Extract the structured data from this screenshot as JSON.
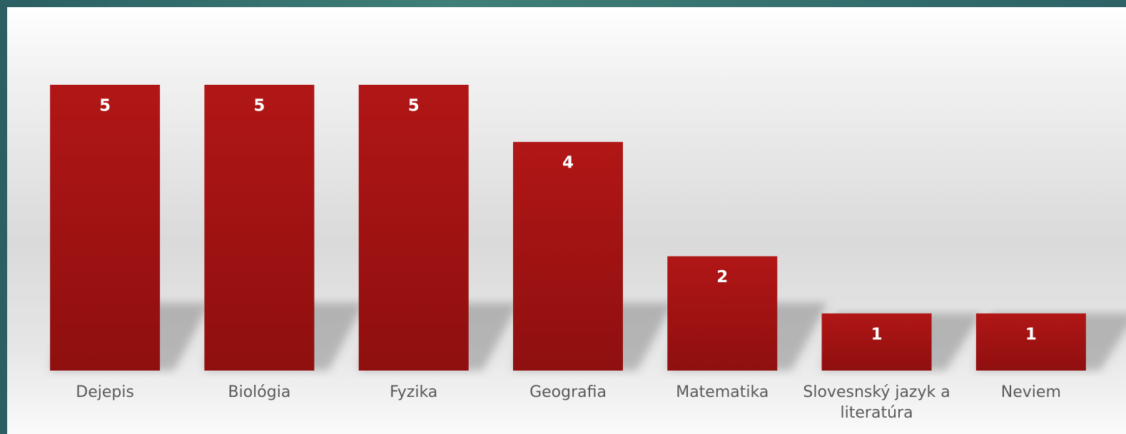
{
  "chart_data": {
    "type": "bar",
    "categories": [
      "Dejepis",
      "Biológia",
      "Fyzika",
      "Geografia",
      "Matematika",
      "Slovesnský jazyk a literatúra",
      "Neviem"
    ],
    "values": [
      5,
      5,
      5,
      4,
      2,
      1,
      1
    ],
    "color": "#a31313",
    "ylim": [
      0,
      5
    ]
  }
}
